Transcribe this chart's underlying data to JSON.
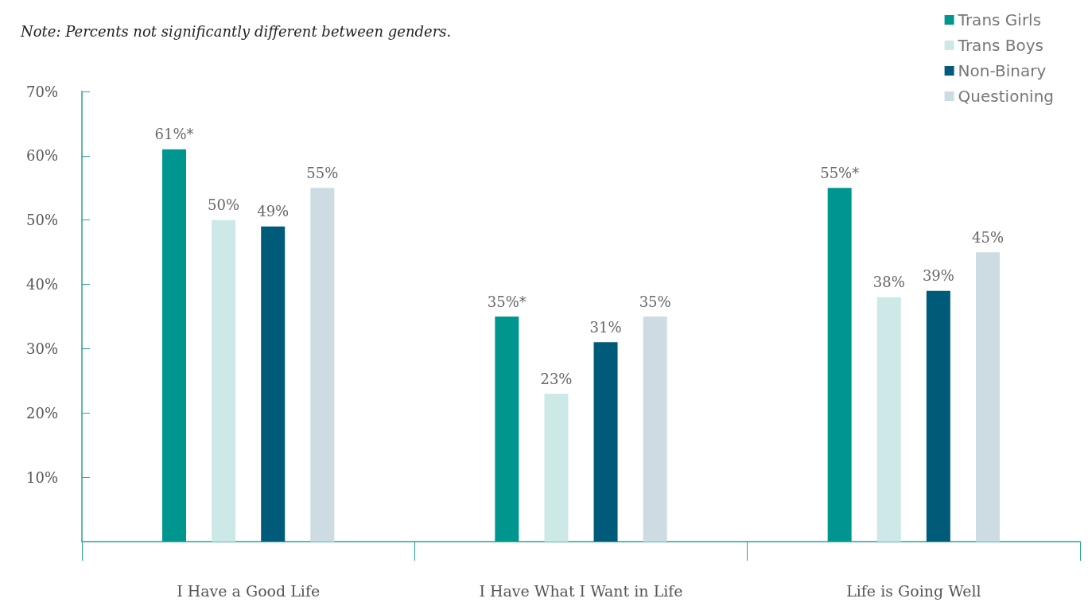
{
  "chart_data": {
    "type": "bar",
    "annotations": [
      "Note: Percents not significantly different between genders."
    ],
    "categories": [
      "I Have a Good Life",
      "I Have What I Want in Life",
      "Life is Going Well"
    ],
    "series": [
      {
        "name": "Trans Girls",
        "color": "#009690",
        "values": [
          61,
          35,
          55
        ],
        "value_labels": [
          "61%*",
          "35%*",
          "55%*"
        ]
      },
      {
        "name": "Trans Boys",
        "color": "#cce9e8",
        "values": [
          50,
          23,
          38
        ],
        "value_labels": [
          "50%",
          "23%",
          "38%"
        ]
      },
      {
        "name": "Non-Binary",
        "color": "#005a7a",
        "values": [
          49,
          31,
          39
        ],
        "value_labels": [
          "49%",
          "31%",
          "39%"
        ]
      },
      {
        "name": "Questioning",
        "color": "#cddce2",
        "values": [
          55,
          35,
          45
        ],
        "value_labels": [
          "55%",
          "35%",
          "45%"
        ]
      }
    ],
    "ylim": [
      0,
      70
    ],
    "yticks": [
      {
        "value": 10,
        "label": "10%"
      },
      {
        "value": 20,
        "label": "20%"
      },
      {
        "value": 30,
        "label": "30%"
      },
      {
        "value": 40,
        "label": "40%"
      },
      {
        "value": 50,
        "label": "50%"
      },
      {
        "value": 60,
        "label": "60%"
      },
      {
        "value": 70,
        "label": "70%"
      }
    ],
    "grid": false,
    "legend": "top right"
  }
}
